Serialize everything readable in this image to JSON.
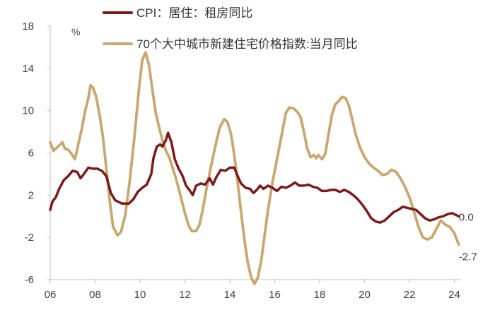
{
  "chart_data": {
    "type": "line",
    "unit_label": "%",
    "ylim": [
      -6,
      18
    ],
    "xlim": [
      2006,
      2024.3
    ],
    "grid": false,
    "legend_position": "top",
    "y_ticks": [
      {
        "value": 18,
        "label": "18"
      },
      {
        "value": 14,
        "label": "14"
      },
      {
        "value": 10,
        "label": "10"
      },
      {
        "value": 6,
        "label": "6"
      },
      {
        "value": 2,
        "label": "2"
      },
      {
        "value": -2,
        "label": "-2"
      },
      {
        "value": -6,
        "label": "-6"
      }
    ],
    "x_ticks": [
      {
        "value": 2006,
        "label": "06"
      },
      {
        "value": 2008,
        "label": "08"
      },
      {
        "value": 2010,
        "label": "10"
      },
      {
        "value": 2012,
        "label": "12"
      },
      {
        "value": 2014,
        "label": "14"
      },
      {
        "value": 2016,
        "label": "16"
      },
      {
        "value": 2018,
        "label": "18"
      },
      {
        "value": 2020,
        "label": "20"
      },
      {
        "value": 2022,
        "label": "22"
      },
      {
        "value": 2024,
        "label": "24"
      }
    ],
    "series": [
      {
        "name": "CPI：居住：租房同比",
        "color": "#7b1a1a",
        "end_label": "0.0",
        "points": [
          [
            2006.0,
            0.6
          ],
          [
            2006.1,
            1.4
          ],
          [
            2006.25,
            1.8
          ],
          [
            2006.4,
            2.6
          ],
          [
            2006.6,
            3.4
          ],
          [
            2006.8,
            3.8
          ],
          [
            2007.0,
            4.3
          ],
          [
            2007.2,
            4.2
          ],
          [
            2007.35,
            3.6
          ],
          [
            2007.5,
            4.0
          ],
          [
            2007.7,
            4.6
          ],
          [
            2007.9,
            4.5
          ],
          [
            2008.1,
            4.5
          ],
          [
            2008.3,
            4.3
          ],
          [
            2008.5,
            3.8
          ],
          [
            2008.7,
            2.2
          ],
          [
            2008.9,
            1.5
          ],
          [
            2009.2,
            1.2
          ],
          [
            2009.5,
            1.2
          ],
          [
            2009.7,
            1.6
          ],
          [
            2009.9,
            2.3
          ],
          [
            2010.1,
            2.7
          ],
          [
            2010.3,
            3.0
          ],
          [
            2010.5,
            4.0
          ],
          [
            2010.6,
            5.5
          ],
          [
            2010.75,
            6.6
          ],
          [
            2010.9,
            6.8
          ],
          [
            2011.0,
            6.6
          ],
          [
            2011.15,
            7.2
          ],
          [
            2011.25,
            7.9
          ],
          [
            2011.4,
            7.0
          ],
          [
            2011.55,
            5.4
          ],
          [
            2011.7,
            4.6
          ],
          [
            2011.9,
            3.8
          ],
          [
            2012.05,
            2.9
          ],
          [
            2012.2,
            2.5
          ],
          [
            2012.35,
            2.0
          ],
          [
            2012.5,
            2.9
          ],
          [
            2012.7,
            3.1
          ],
          [
            2012.9,
            3.0
          ],
          [
            2013.1,
            3.6
          ],
          [
            2013.25,
            3.0
          ],
          [
            2013.4,
            3.7
          ],
          [
            2013.6,
            4.4
          ],
          [
            2013.8,
            4.3
          ],
          [
            2014.0,
            4.6
          ],
          [
            2014.2,
            4.6
          ],
          [
            2014.35,
            3.8
          ],
          [
            2014.5,
            3.1
          ],
          [
            2014.7,
            2.7
          ],
          [
            2014.9,
            2.6
          ],
          [
            2015.05,
            2.2
          ],
          [
            2015.2,
            2.5
          ],
          [
            2015.35,
            2.9
          ],
          [
            2015.5,
            2.6
          ],
          [
            2015.7,
            2.9
          ],
          [
            2015.9,
            2.7
          ],
          [
            2016.1,
            2.4
          ],
          [
            2016.3,
            2.8
          ],
          [
            2016.5,
            2.7
          ],
          [
            2016.7,
            2.9
          ],
          [
            2016.9,
            3.2
          ],
          [
            2017.1,
            2.9
          ],
          [
            2017.3,
            2.9
          ],
          [
            2017.5,
            3.0
          ],
          [
            2017.7,
            2.8
          ],
          [
            2017.9,
            2.7
          ],
          [
            2018.1,
            2.4
          ],
          [
            2018.3,
            2.4
          ],
          [
            2018.5,
            2.5
          ],
          [
            2018.7,
            2.5
          ],
          [
            2018.9,
            2.3
          ],
          [
            2019.1,
            2.5
          ],
          [
            2019.3,
            2.3
          ],
          [
            2019.5,
            2.0
          ],
          [
            2019.7,
            1.6
          ],
          [
            2019.9,
            1.1
          ],
          [
            2020.1,
            0.5
          ],
          [
            2020.3,
            -0.2
          ],
          [
            2020.5,
            -0.5
          ],
          [
            2020.7,
            -0.6
          ],
          [
            2020.9,
            -0.4
          ],
          [
            2021.1,
            0.0
          ],
          [
            2021.3,
            0.4
          ],
          [
            2021.5,
            0.6
          ],
          [
            2021.7,
            0.9
          ],
          [
            2021.9,
            0.8
          ],
          [
            2022.1,
            0.7
          ],
          [
            2022.3,
            0.6
          ],
          [
            2022.5,
            0.2
          ],
          [
            2022.7,
            -0.2
          ],
          [
            2022.9,
            -0.4
          ],
          [
            2023.1,
            -0.3
          ],
          [
            2023.3,
            -0.1
          ],
          [
            2023.5,
            0.0
          ],
          [
            2023.7,
            0.2
          ],
          [
            2023.9,
            0.3
          ],
          [
            2024.1,
            0.1
          ],
          [
            2024.2,
            0.0
          ]
        ]
      },
      {
        "name": "70个大中城市新建住宅价格指数:当月同比",
        "color": "#c9a870",
        "end_label": "-2.7",
        "points": [
          [
            2006.0,
            7.0
          ],
          [
            2006.15,
            6.2
          ],
          [
            2006.3,
            6.5
          ],
          [
            2006.45,
            6.8
          ],
          [
            2006.55,
            7.0
          ],
          [
            2006.65,
            6.4
          ],
          [
            2006.8,
            6.3
          ],
          [
            2006.95,
            5.9
          ],
          [
            2007.1,
            5.4
          ],
          [
            2007.25,
            6.8
          ],
          [
            2007.4,
            8.2
          ],
          [
            2007.55,
            9.9
          ],
          [
            2007.7,
            11.2
          ],
          [
            2007.8,
            12.4
          ],
          [
            2007.9,
            12.2
          ],
          [
            2008.05,
            11.3
          ],
          [
            2008.2,
            9.6
          ],
          [
            2008.35,
            7.5
          ],
          [
            2008.5,
            4.5
          ],
          [
            2008.65,
            1.5
          ],
          [
            2008.8,
            -1.0
          ],
          [
            2009.0,
            -1.8
          ],
          [
            2009.15,
            -1.5
          ],
          [
            2009.35,
            0.2
          ],
          [
            2009.55,
            3.5
          ],
          [
            2009.75,
            7.5
          ],
          [
            2009.95,
            12.0
          ],
          [
            2010.1,
            14.8
          ],
          [
            2010.25,
            15.5
          ],
          [
            2010.4,
            14.3
          ],
          [
            2010.55,
            12.0
          ],
          [
            2010.7,
            9.8
          ],
          [
            2010.85,
            8.4
          ],
          [
            2011.0,
            7.2
          ],
          [
            2011.15,
            6.2
          ],
          [
            2011.3,
            5.6
          ],
          [
            2011.45,
            4.6
          ],
          [
            2011.6,
            3.6
          ],
          [
            2011.8,
            2.0
          ],
          [
            2012.0,
            0.3
          ],
          [
            2012.15,
            -0.8
          ],
          [
            2012.3,
            -1.4
          ],
          [
            2012.5,
            -1.4
          ],
          [
            2012.65,
            -0.8
          ],
          [
            2012.8,
            0.7
          ],
          [
            2012.95,
            2.5
          ],
          [
            2013.15,
            4.6
          ],
          [
            2013.35,
            6.6
          ],
          [
            2013.55,
            8.4
          ],
          [
            2013.75,
            9.2
          ],
          [
            2013.9,
            8.9
          ],
          [
            2014.05,
            7.8
          ],
          [
            2014.2,
            5.8
          ],
          [
            2014.35,
            3.2
          ],
          [
            2014.5,
            0.4
          ],
          [
            2014.65,
            -2.2
          ],
          [
            2014.8,
            -4.4
          ],
          [
            2014.95,
            -5.8
          ],
          [
            2015.1,
            -6.4
          ],
          [
            2015.25,
            -5.8
          ],
          [
            2015.4,
            -4.2
          ],
          [
            2015.55,
            -1.8
          ],
          [
            2015.7,
            0.6
          ],
          [
            2015.9,
            3.2
          ],
          [
            2016.1,
            5.4
          ],
          [
            2016.3,
            7.6
          ],
          [
            2016.5,
            9.8
          ],
          [
            2016.65,
            10.3
          ],
          [
            2016.85,
            10.2
          ],
          [
            2017.0,
            9.9
          ],
          [
            2017.15,
            9.4
          ],
          [
            2017.3,
            8.0
          ],
          [
            2017.45,
            6.4
          ],
          [
            2017.6,
            5.6
          ],
          [
            2017.75,
            5.8
          ],
          [
            2017.85,
            5.5
          ],
          [
            2017.95,
            5.8
          ],
          [
            2018.1,
            5.4
          ],
          [
            2018.25,
            5.9
          ],
          [
            2018.4,
            7.8
          ],
          [
            2018.55,
            9.6
          ],
          [
            2018.7,
            10.6
          ],
          [
            2018.85,
            10.9
          ],
          [
            2019.0,
            11.3
          ],
          [
            2019.15,
            11.2
          ],
          [
            2019.3,
            10.5
          ],
          [
            2019.45,
            9.2
          ],
          [
            2019.6,
            7.8
          ],
          [
            2019.8,
            6.5
          ],
          [
            2020.0,
            5.6
          ],
          [
            2020.2,
            5.0
          ],
          [
            2020.4,
            4.6
          ],
          [
            2020.6,
            4.3
          ],
          [
            2020.8,
            3.9
          ],
          [
            2021.0,
            4.0
          ],
          [
            2021.2,
            4.4
          ],
          [
            2021.4,
            4.2
          ],
          [
            2021.6,
            3.6
          ],
          [
            2021.8,
            2.8
          ],
          [
            2022.0,
            1.8
          ],
          [
            2022.2,
            0.5
          ],
          [
            2022.4,
            -1.0
          ],
          [
            2022.6,
            -2.0
          ],
          [
            2022.8,
            -2.2
          ],
          [
            2023.0,
            -2.0
          ],
          [
            2023.2,
            -1.2
          ],
          [
            2023.4,
            -0.4
          ],
          [
            2023.6,
            -0.8
          ],
          [
            2023.8,
            -1.0
          ],
          [
            2024.0,
            -1.6
          ],
          [
            2024.2,
            -2.7
          ]
        ]
      }
    ]
  }
}
